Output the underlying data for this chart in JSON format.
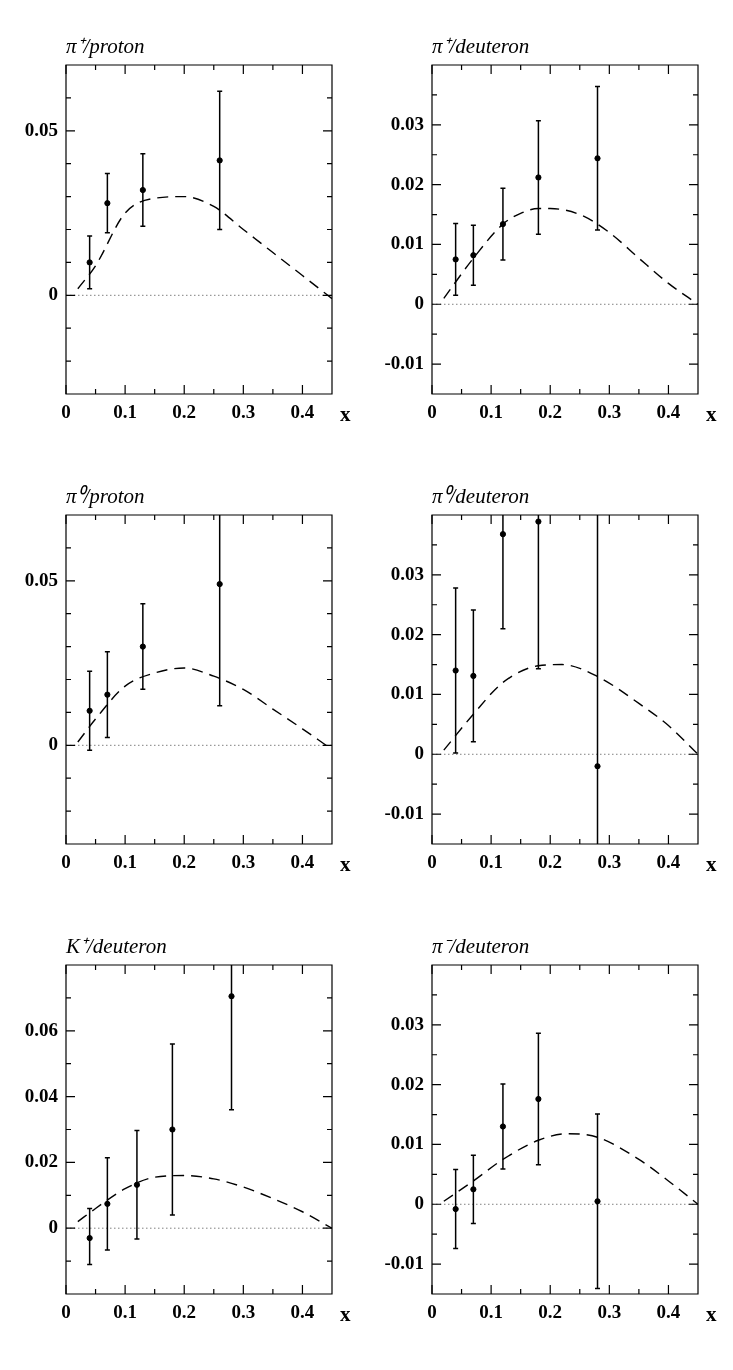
{
  "chart_data": [
    {
      "type": "scatter",
      "title": "π⁺/proton",
      "xlabel": "x",
      "xlim": [
        0,
        0.45
      ],
      "xticks": [
        0,
        {
          "value": 0.05,
          "label": null
        },
        0.1,
        {
          "value": 0.15,
          "label": null
        },
        0.2,
        {
          "value": 0.25,
          "label": null
        },
        0.3,
        {
          "value": 0.35,
          "label": null
        },
        0.4
      ],
      "ylim": [
        -0.03,
        0.07
      ],
      "yticks": [
        {
          "value": -0.02,
          "label": null
        },
        {
          "value": -0.01,
          "label": null
        },
        0,
        {
          "value": 0.01,
          "label": null
        },
        {
          "value": 0.02,
          "label": null
        },
        {
          "value": 0.03,
          "label": null
        },
        {
          "value": 0.04,
          "label": null
        },
        0.05,
        {
          "value": 0.06,
          "label": null
        }
      ],
      "ref_lines": [
        {
          "axis": "y",
          "value": 0,
          "line_style": "dotted",
          "color": "#808080"
        }
      ],
      "series": [
        {
          "type": "scatter",
          "color": "#000000",
          "marker": "circle",
          "x": [
            0.04,
            0.07,
            0.13,
            0.26
          ],
          "values": [
            0.01,
            0.028,
            0.032,
            0.041
          ],
          "errors": [
            0.008,
            0.009,
            0.011,
            0.021
          ]
        },
        {
          "type": "line",
          "color": "#000000",
          "marker": "none",
          "line_style": "dashed",
          "x": [
            0.02,
            0.05,
            0.1,
            0.15,
            0.2,
            0.25,
            0.3,
            0.35,
            0.4,
            0.45
          ],
          "values": [
            0.002,
            0.009,
            0.025,
            0.0295,
            0.03,
            0.027,
            0.02,
            0.013,
            0.006,
            -0.001
          ]
        }
      ]
    },
    {
      "type": "scatter",
      "title": "π⁺/deuteron",
      "xlabel": "x",
      "xlim": [
        0,
        0.45
      ],
      "xticks": [
        0,
        {
          "value": 0.05,
          "label": null
        },
        0.1,
        {
          "value": 0.15,
          "label": null
        },
        0.2,
        {
          "value": 0.25,
          "label": null
        },
        0.3,
        {
          "value": 0.35,
          "label": null
        },
        0.4
      ],
      "ylim": [
        -0.015,
        0.04
      ],
      "yticks": [
        -0.01,
        {
          "value": -0.005,
          "label": null
        },
        0,
        {
          "value": 0.005,
          "label": null
        },
        0.01,
        {
          "value": 0.015,
          "label": null
        },
        0.02,
        {
          "value": 0.025,
          "label": null
        },
        0.03,
        {
          "value": 0.035,
          "label": null
        }
      ],
      "ref_lines": [
        {
          "axis": "y",
          "value": 0,
          "line_style": "dotted",
          "color": "#808080"
        }
      ],
      "series": [
        {
          "type": "scatter",
          "color": "#000000",
          "marker": "circle",
          "x": [
            0.04,
            0.07,
            0.12,
            0.18,
            0.28
          ],
          "values": [
            0.0075,
            0.0082,
            0.0134,
            0.0212,
            0.0244
          ],
          "errors": [
            0.006,
            0.005,
            0.006,
            0.0095,
            0.012
          ]
        },
        {
          "type": "line",
          "color": "#000000",
          "marker": "none",
          "line_style": "dashed",
          "x": [
            0.02,
            0.07,
            0.12,
            0.15,
            0.18,
            0.2,
            0.25,
            0.3,
            0.35,
            0.4,
            0.45
          ],
          "values": [
            0.001,
            0.0077,
            0.0134,
            0.0152,
            0.016,
            0.016,
            0.015,
            0.012,
            0.0077,
            0.0035,
            0
          ]
        }
      ]
    },
    {
      "type": "scatter",
      "title": "π⁰/proton",
      "xlabel": "x",
      "xlim": [
        0,
        0.45
      ],
      "xticks": [
        0,
        {
          "value": 0.05,
          "label": null
        },
        0.1,
        {
          "value": 0.15,
          "label": null
        },
        0.2,
        {
          "value": 0.25,
          "label": null
        },
        0.3,
        {
          "value": 0.35,
          "label": null
        },
        0.4
      ],
      "ylim": [
        -0.03,
        0.07
      ],
      "yticks": [
        {
          "value": -0.02,
          "label": null
        },
        {
          "value": -0.01,
          "label": null
        },
        0,
        {
          "value": 0.01,
          "label": null
        },
        {
          "value": 0.02,
          "label": null
        },
        {
          "value": 0.03,
          "label": null
        },
        {
          "value": 0.04,
          "label": null
        },
        0.05,
        {
          "value": 0.06,
          "label": null
        }
      ],
      "ref_lines": [
        {
          "axis": "y",
          "value": 0,
          "line_style": "dotted",
          "color": "#808080"
        }
      ],
      "series": [
        {
          "type": "scatter",
          "color": "#000000",
          "marker": "circle",
          "x": [
            0.04,
            0.07,
            0.13,
            0.26
          ],
          "values": [
            0.0105,
            0.0154,
            0.03,
            0.049
          ],
          "errors": [
            0.012,
            0.013,
            0.013,
            [
              0.012,
              0.07
            ]
          ]
        },
        {
          "type": "line",
          "color": "#000000",
          "marker": "none",
          "line_style": "dashed",
          "x": [
            0.02,
            0.05,
            0.1,
            0.15,
            0.2,
            0.25,
            0.3,
            0.35,
            0.4,
            0.44
          ],
          "values": [
            0.001,
            0.008,
            0.018,
            0.022,
            0.0235,
            0.021,
            0.017,
            0.011,
            0.005,
            0
          ]
        }
      ]
    },
    {
      "type": "scatter",
      "title": "π⁰/deuteron",
      "xlabel": "x",
      "xlim": [
        0,
        0.45
      ],
      "xticks": [
        0,
        {
          "value": 0.05,
          "label": null
        },
        0.1,
        {
          "value": 0.15,
          "label": null
        },
        0.2,
        {
          "value": 0.25,
          "label": null
        },
        0.3,
        {
          "value": 0.35,
          "label": null
        },
        0.4
      ],
      "ylim": [
        -0.015,
        0.04
      ],
      "yticks": [
        -0.01,
        {
          "value": -0.005,
          "label": null
        },
        0,
        {
          "value": 0.005,
          "label": null
        },
        0.01,
        {
          "value": 0.015,
          "label": null
        },
        0.02,
        {
          "value": 0.025,
          "label": null
        },
        0.03,
        {
          "value": 0.035,
          "label": null
        }
      ],
      "ref_lines": [
        {
          "axis": "y",
          "value": 0,
          "line_style": "dotted",
          "color": "#808080"
        }
      ],
      "series": [
        {
          "type": "scatter",
          "color": "#000000",
          "marker": "circle",
          "x": [
            0.04,
            0.07,
            0.12,
            0.18,
            0.28
          ],
          "values": [
            0.014,
            0.0131,
            0.0368,
            0.0389,
            -0.002
          ],
          "errors": [
            0.0138,
            0.011,
            [
              0.021,
              0.04
            ],
            [
              0.0143,
              0.04
            ],
            [
              -0.015,
              0.04
            ]
          ]
        },
        {
          "type": "line",
          "color": "#000000",
          "marker": "none",
          "line_style": "dashed",
          "x": [
            0.02,
            0.07,
            0.12,
            0.18,
            0.22,
            0.28,
            0.35,
            0.4,
            0.45
          ],
          "values": [
            0.0007,
            0.0067,
            0.012,
            0.0148,
            0.015,
            0.013,
            0.0085,
            0.0048,
            0
          ]
        }
      ]
    },
    {
      "type": "scatter",
      "title": "K⁺/deuteron",
      "xlabel": "x",
      "xlim": [
        0,
        0.45
      ],
      "xticks": [
        0,
        {
          "value": 0.05,
          "label": null
        },
        0.1,
        {
          "value": 0.15,
          "label": null
        },
        0.2,
        {
          "value": 0.25,
          "label": null
        },
        0.3,
        {
          "value": 0.35,
          "label": null
        },
        0.4
      ],
      "ylim": [
        -0.02,
        0.08
      ],
      "yticks": [
        {
          "value": -0.01,
          "label": null
        },
        0,
        {
          "value": 0.01,
          "label": null
        },
        0.02,
        {
          "value": 0.03,
          "label": null
        },
        0.04,
        {
          "value": 0.05,
          "label": null
        },
        0.06,
        {
          "value": 0.07,
          "label": null
        }
      ],
      "ref_lines": [
        {
          "axis": "y",
          "value": 0,
          "line_style": "dotted",
          "color": "#808080"
        }
      ],
      "series": [
        {
          "type": "scatter",
          "color": "#000000",
          "marker": "circle",
          "x": [
            0.04,
            0.07,
            0.12,
            0.18,
            0.28
          ],
          "values": [
            -0.003,
            0.0074,
            0.0132,
            0.03,
            0.0705
          ],
          "errors": [
            [
              -0.011,
              0.006
            ],
            0.014,
            0.0165,
            0.026,
            [
              0.036,
              0.08
            ]
          ]
        },
        {
          "type": "line",
          "color": "#000000",
          "marker": "none",
          "line_style": "dashed",
          "x": [
            0.02,
            0.05,
            0.1,
            0.15,
            0.2,
            0.25,
            0.3,
            0.35,
            0.4,
            0.45
          ],
          "values": [
            0.002,
            0.006,
            0.012,
            0.0155,
            0.016,
            0.015,
            0.0125,
            0.009,
            0.005,
            0
          ]
        }
      ]
    },
    {
      "type": "scatter",
      "title": "π⁻/deuteron",
      "xlabel": "x",
      "xlim": [
        0,
        0.45
      ],
      "xticks": [
        0,
        {
          "value": 0.05,
          "label": null
        },
        0.1,
        {
          "value": 0.15,
          "label": null
        },
        0.2,
        {
          "value": 0.25,
          "label": null
        },
        0.3,
        {
          "value": 0.35,
          "label": null
        },
        0.4
      ],
      "ylim": [
        -0.015,
        0.04
      ],
      "yticks": [
        -0.01,
        {
          "value": -0.005,
          "label": null
        },
        0,
        {
          "value": 0.005,
          "label": null
        },
        0.01,
        {
          "value": 0.015,
          "label": null
        },
        0.02,
        {
          "value": 0.025,
          "label": null
        },
        0.03,
        {
          "value": 0.035,
          "label": null
        }
      ],
      "ref_lines": [
        {
          "axis": "y",
          "value": 0,
          "line_style": "dotted",
          "color": "#808080"
        }
      ],
      "series": [
        {
          "type": "scatter",
          "color": "#000000",
          "marker": "circle",
          "x": [
            0.04,
            0.07,
            0.12,
            0.18,
            0.28
          ],
          "values": [
            -0.0008,
            0.0025,
            0.013,
            0.0176,
            0.0005
          ],
          "errors": [
            0.0066,
            0.0057,
            0.0071,
            0.011,
            0.0146
          ]
        },
        {
          "type": "line",
          "color": "#000000",
          "marker": "none",
          "line_style": "dashed",
          "x": [
            0.02,
            0.07,
            0.12,
            0.18,
            0.23,
            0.28,
            0.35,
            0.4,
            0.45
          ],
          "values": [
            0.0005,
            0.0039,
            0.0075,
            0.0107,
            0.0118,
            0.0112,
            0.0075,
            0.0039,
            0
          ]
        }
      ]
    }
  ]
}
